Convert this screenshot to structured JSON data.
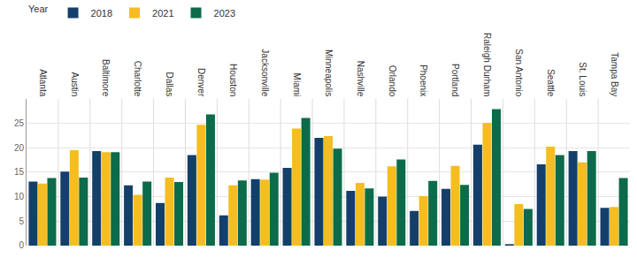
{
  "chart_data": {
    "type": "bar",
    "legend_title": "Year",
    "legend": "top left",
    "grid": true,
    "categories": [
      "Atlanta",
      "Austin",
      "Baltimore",
      "Charlotte",
      "Dallas",
      "Denver",
      "Houston",
      "Jacksonville",
      "Miami",
      "Minneapolis",
      "Nashville",
      "Orlando",
      "Phoenix",
      "Portland",
      "Raleigh Durham",
      "San Antonio",
      "Seattle",
      "St. Louis",
      "Tampa Bay"
    ],
    "series": [
      {
        "name": "2018",
        "color": "#143f6b",
        "values": [
          13.1,
          15.1,
          19.3,
          12.3,
          8.7,
          18.5,
          6.2,
          13.6,
          15.9,
          22.0,
          11.2,
          10.0,
          7.1,
          11.6,
          20.6,
          0.3,
          16.6,
          19.3,
          7.7
        ]
      },
      {
        "name": "2021",
        "color": "#f5bd1f",
        "values": [
          12.7,
          19.5,
          19.1,
          10.4,
          13.9,
          24.7,
          12.3,
          13.5,
          23.9,
          22.4,
          12.8,
          16.2,
          10.1,
          16.3,
          25.1,
          8.5,
          20.2,
          17.0,
          7.9
        ]
      },
      {
        "name": "2023",
        "color": "#0b6b4a",
        "values": [
          13.8,
          13.9,
          19.1,
          13.1,
          13.0,
          26.8,
          13.3,
          14.9,
          26.1,
          19.8,
          11.7,
          17.6,
          13.2,
          12.4,
          27.9,
          7.5,
          18.5,
          19.3,
          13.8
        ]
      }
    ],
    "ylim": [
      0,
      30
    ],
    "yticks": [
      0,
      5,
      10,
      15,
      20,
      25
    ]
  }
}
